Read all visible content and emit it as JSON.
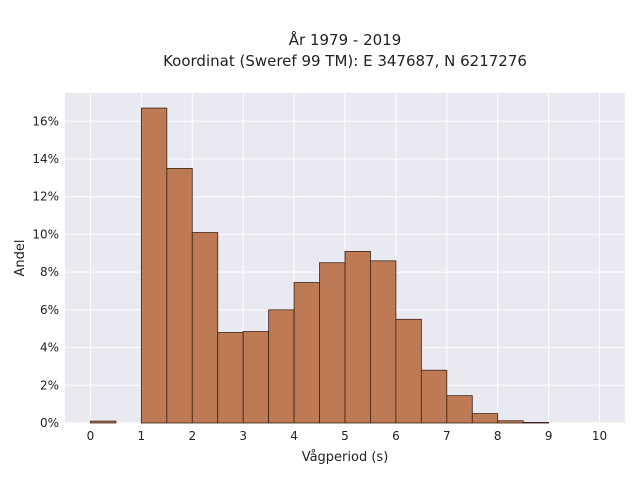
{
  "chart_data": {
    "type": "bar",
    "title_line1": "År 1979 - 2019",
    "title_line2": "Koordinat (Sweref 99 TM): E 347687, N 6217276",
    "xlabel": "Vågperiod (s)",
    "ylabel": "Andel",
    "bin_width": 0.5,
    "bins": [
      {
        "start": 0.0,
        "end": 0.5,
        "value": 0.1
      },
      {
        "start": 0.5,
        "end": 1.0,
        "value": 0.0
      },
      {
        "start": 1.0,
        "end": 1.5,
        "value": 16.7
      },
      {
        "start": 1.5,
        "end": 2.0,
        "value": 13.5
      },
      {
        "start": 2.0,
        "end": 2.5,
        "value": 10.1
      },
      {
        "start": 2.5,
        "end": 3.0,
        "value": 4.8
      },
      {
        "start": 3.0,
        "end": 3.5,
        "value": 4.85
      },
      {
        "start": 3.5,
        "end": 4.0,
        "value": 6.0
      },
      {
        "start": 4.0,
        "end": 4.5,
        "value": 7.45
      },
      {
        "start": 4.5,
        "end": 5.0,
        "value": 8.5
      },
      {
        "start": 5.0,
        "end": 5.5,
        "value": 9.1
      },
      {
        "start": 5.5,
        "end": 6.0,
        "value": 8.6
      },
      {
        "start": 6.0,
        "end": 6.5,
        "value": 5.5
      },
      {
        "start": 6.5,
        "end": 7.0,
        "value": 2.8
      },
      {
        "start": 7.0,
        "end": 7.5,
        "value": 1.45
      },
      {
        "start": 7.5,
        "end": 8.0,
        "value": 0.5
      },
      {
        "start": 8.0,
        "end": 8.5,
        "value": 0.12
      },
      {
        "start": 8.5,
        "end": 9.0,
        "value": 0.03
      }
    ],
    "xlim": [
      -0.5,
      10.5
    ],
    "ylim": [
      0,
      17.5
    ],
    "x_ticks": [
      0,
      1,
      2,
      3,
      4,
      5,
      6,
      7,
      8,
      9,
      10
    ],
    "x_tick_labels": [
      "0",
      "1",
      "2",
      "3",
      "4",
      "5",
      "6",
      "7",
      "8",
      "9",
      "10"
    ],
    "y_ticks": [
      0,
      2,
      4,
      6,
      8,
      10,
      12,
      14,
      16
    ],
    "y_tick_labels": [
      "0%",
      "2%",
      "4%",
      "6%",
      "8%",
      "10%",
      "12%",
      "14%",
      "16%"
    ],
    "grid": true,
    "colors": {
      "bar_fill": "#bd7a55",
      "bar_edge": "#3b2416",
      "plot_background": "#e9e9f1",
      "grid": "#ffffff",
      "text": "#222222"
    }
  }
}
